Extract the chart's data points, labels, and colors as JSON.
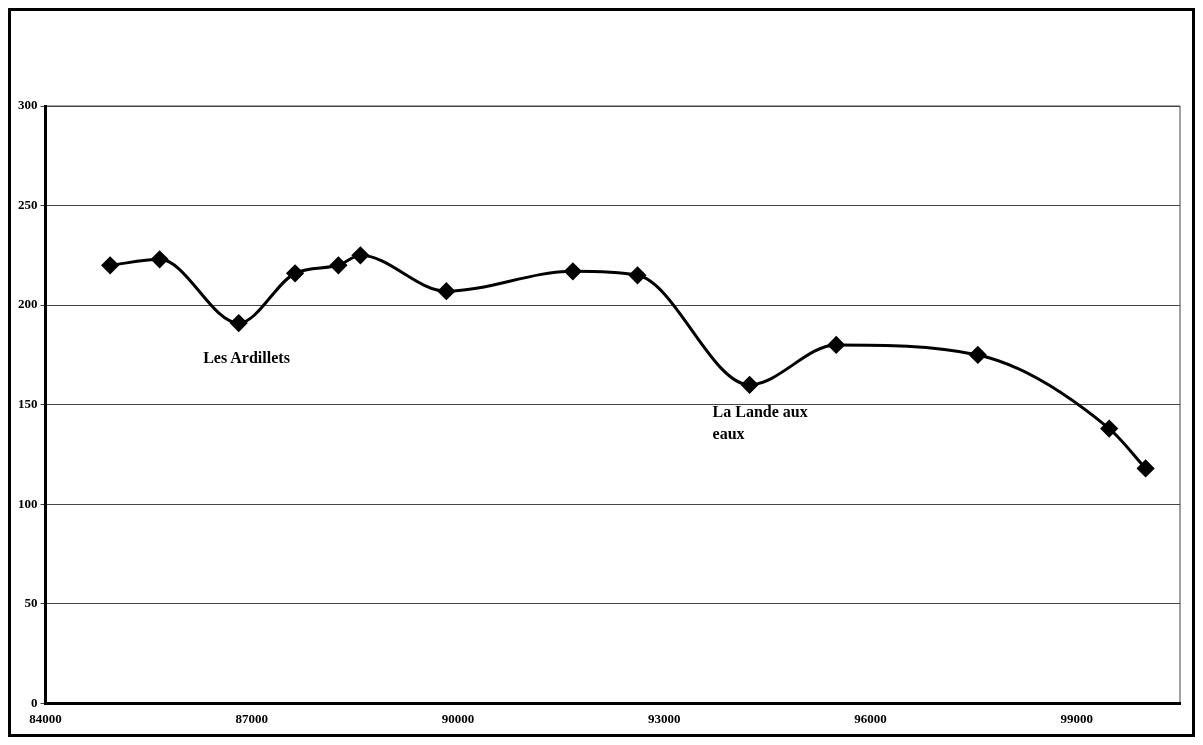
{
  "chart_data": {
    "type": "line",
    "x": [
      84940,
      85660,
      86810,
      87630,
      88260,
      88580,
      89830,
      91670,
      92610,
      94240,
      95500,
      97560,
      99470,
      100000
    ],
    "series": [
      {
        "color": "#000000",
        "values": [
          220,
          223,
          191,
          216,
          220,
          225,
          207,
          217,
          215,
          160,
          180,
          175,
          138,
          118
        ]
      }
    ],
    "xlim": [
      84000,
      100500
    ],
    "xticks": [
      84000,
      87000,
      90000,
      93000,
      96000,
      99000
    ],
    "ylim": [
      0,
      300
    ],
    "yticks": [
      0,
      50,
      100,
      150,
      200,
      250,
      300
    ],
    "grid": "y",
    "marker": "diamond",
    "line_style": "solid",
    "legend": false,
    "annotations": [
      "Les Ardillets",
      "La Lande aux eaux"
    ]
  }
}
